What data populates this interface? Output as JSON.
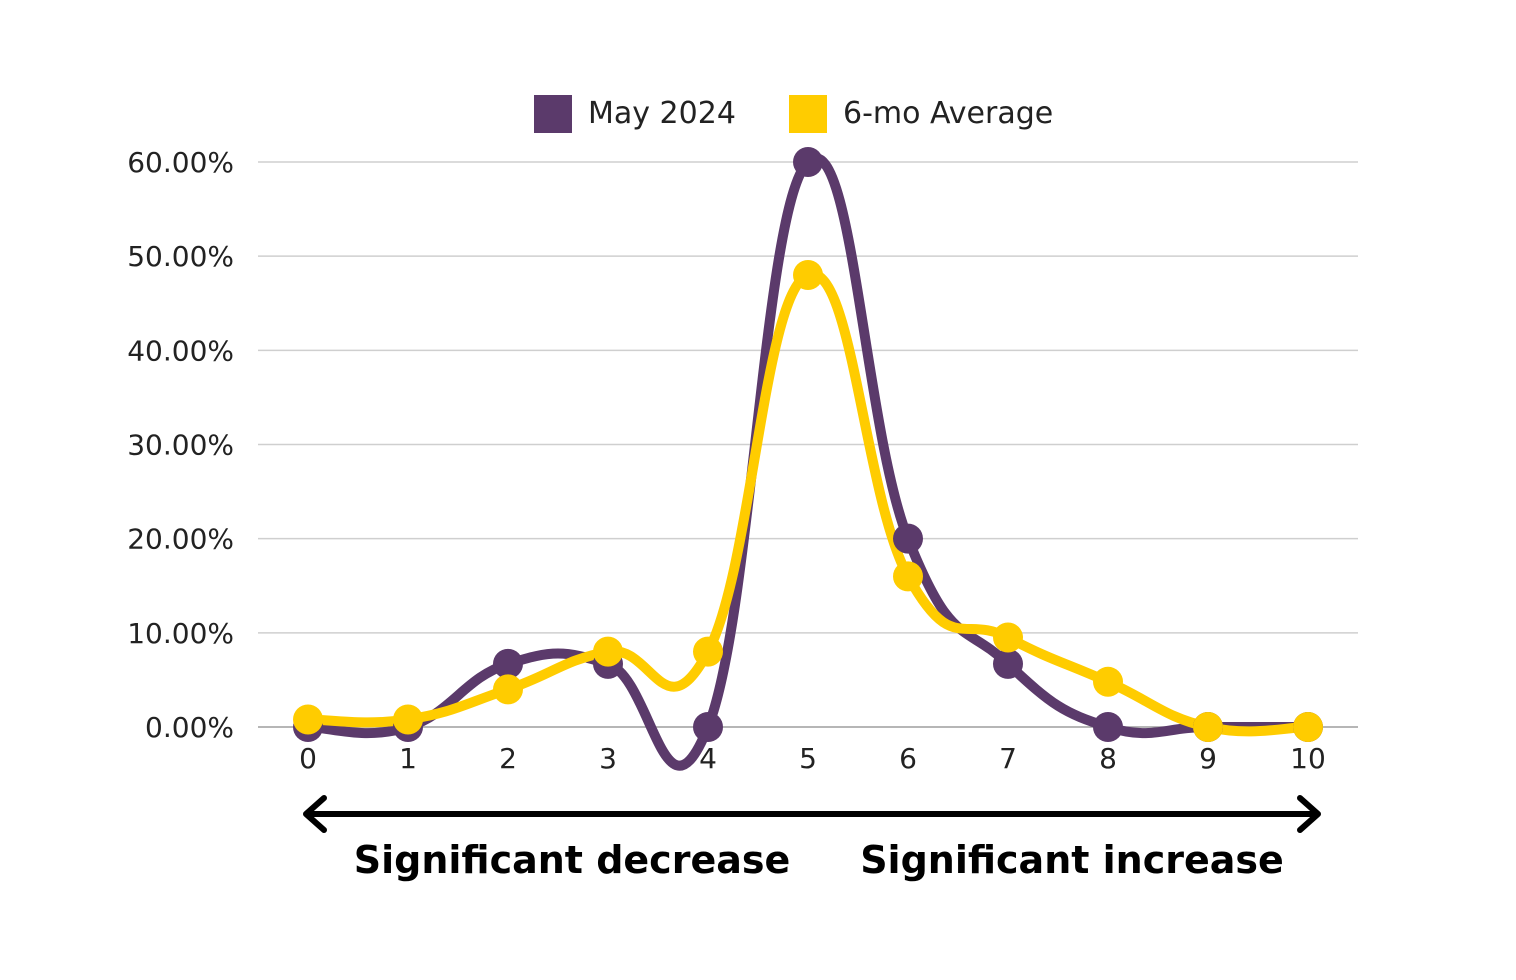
{
  "chart_data": {
    "type": "line",
    "title": "",
    "xlabel": "",
    "ylabel": "",
    "x": [
      0,
      1,
      2,
      3,
      4,
      5,
      6,
      7,
      8,
      9,
      10
    ],
    "x_tick_labels": [
      "0",
      "1",
      "2",
      "3",
      "4",
      "5",
      "6",
      "7",
      "8",
      "9",
      "10"
    ],
    "y_tick_labels": [
      "0.00%",
      "10.00%",
      "20.00%",
      "30.00%",
      "40.00%",
      "50.00%",
      "60.00%"
    ],
    "ylim": [
      0,
      60
    ],
    "y_unit": "percent",
    "grid": true,
    "smooth": true,
    "legend_position": "top-center",
    "series": [
      {
        "name": "May 2024",
        "color": "#5b3a6b",
        "values": [
          0,
          0,
          6.7,
          6.7,
          0,
          60,
          20,
          6.7,
          0,
          0,
          0
        ]
      },
      {
        "name": "6-mo Average",
        "color": "#ffcc00",
        "values": [
          0.8,
          0.8,
          4,
          8,
          8,
          48,
          16,
          9.5,
          4.8,
          0,
          0
        ]
      }
    ],
    "annotations": {
      "left_label": "Significant decrease",
      "right_label": "Significant increase",
      "arrow": "double-headed"
    }
  }
}
